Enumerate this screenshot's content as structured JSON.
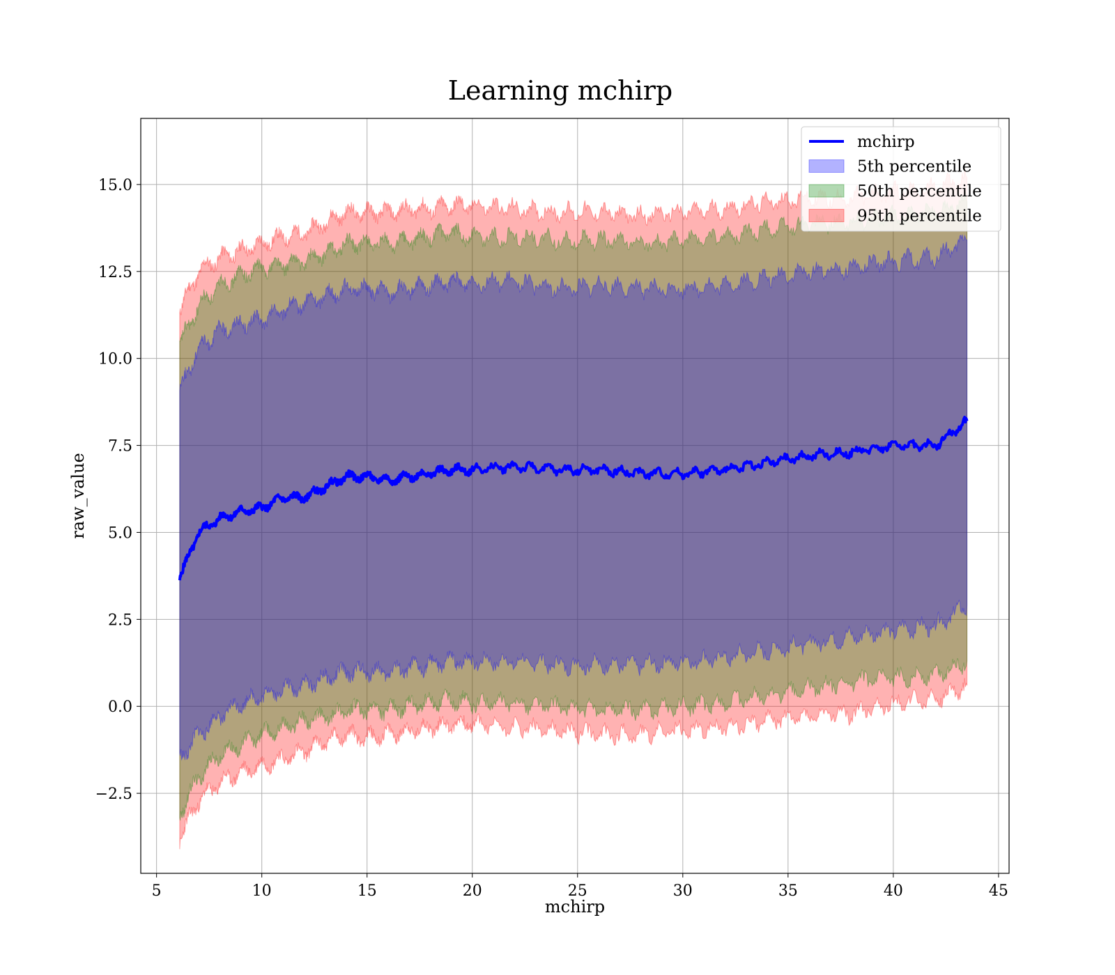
{
  "chart_data": {
    "type": "area",
    "title": "Learning mchirp",
    "xlabel": "mchirp",
    "ylabel": "raw_value",
    "xlim": [
      4.25,
      45.5
    ],
    "ylim": [
      -4.8,
      16.9
    ],
    "xticks": [
      5,
      10,
      15,
      20,
      25,
      30,
      35,
      40,
      45
    ],
    "xtick_labels": [
      "5",
      "10",
      "15",
      "20",
      "25",
      "30",
      "35",
      "40",
      "45"
    ],
    "yticks": [
      -2.5,
      0.0,
      2.5,
      5.0,
      7.5,
      10.0,
      12.5,
      15.0
    ],
    "ytick_labels": [
      "−2.5",
      "0.0",
      "2.5",
      "5.0",
      "7.5",
      "10.0",
      "12.5",
      "15.0"
    ],
    "grid": true,
    "legend_position": "top-right",
    "x": [
      6.1,
      7,
      8,
      9,
      10,
      11,
      12,
      13,
      14,
      15,
      16,
      17,
      18,
      19,
      20,
      22,
      24,
      26,
      28,
      30,
      32,
      34,
      36,
      38,
      40,
      42,
      43.5
    ],
    "series": [
      {
        "name": "mchirp",
        "kind": "line",
        "color": "#0000ff",
        "values": [
          3.7,
          5.0,
          5.4,
          5.6,
          5.7,
          6.0,
          6.0,
          6.3,
          6.6,
          6.6,
          6.5,
          6.6,
          6.7,
          6.8,
          6.8,
          6.9,
          6.8,
          6.8,
          6.7,
          6.7,
          6.8,
          7.0,
          7.2,
          7.3,
          7.5,
          7.5,
          8.2
        ]
      },
      {
        "name": "5th percentile",
        "kind": "band",
        "color": "#0000ff",
        "lower": [
          -1.5,
          -0.8,
          -0.3,
          0.1,
          0.3,
          0.5,
          0.6,
          0.8,
          1.0,
          1.0,
          1.0,
          1.1,
          1.2,
          1.3,
          1.3,
          1.3,
          1.2,
          1.2,
          1.2,
          1.3,
          1.4,
          1.6,
          1.8,
          2.0,
          2.2,
          2.3,
          2.9
        ],
        "upper": [
          9.1,
          10.3,
          10.8,
          11.0,
          11.1,
          11.4,
          11.6,
          11.8,
          12.0,
          12.0,
          11.9,
          12.0,
          12.1,
          12.2,
          12.2,
          12.2,
          12.0,
          12.1,
          12.0,
          12.0,
          12.1,
          12.3,
          12.5,
          12.6,
          12.8,
          12.9,
          13.4
        ]
      },
      {
        "name": "50th percentile",
        "kind": "band",
        "color": "#008000",
        "lower": [
          -3.1,
          -2.0,
          -1.4,
          -1.1,
          -0.8,
          -0.6,
          -0.4,
          -0.3,
          -0.1,
          -0.1,
          -0.1,
          0.0,
          0.1,
          0.2,
          0.1,
          0.1,
          0.0,
          -0.1,
          -0.1,
          0.0,
          0.1,
          0.3,
          0.5,
          0.7,
          0.8,
          0.9,
          1.3
        ],
        "upper": [
          10.4,
          11.5,
          12.1,
          12.4,
          12.6,
          12.7,
          12.8,
          13.0,
          13.3,
          13.3,
          13.3,
          13.4,
          13.5,
          13.6,
          13.5,
          13.5,
          13.4,
          13.4,
          13.3,
          13.4,
          13.5,
          13.7,
          13.9,
          13.9,
          14.1,
          14.2,
          14.5
        ]
      },
      {
        "name": "95th percentile",
        "kind": "band",
        "color": "#ff0000",
        "lower": [
          -3.8,
          -2.7,
          -2.2,
          -1.9,
          -1.7,
          -1.5,
          -1.3,
          -1.0,
          -0.8,
          -0.9,
          -0.8,
          -0.7,
          -0.6,
          -0.5,
          -0.5,
          -0.6,
          -0.7,
          -0.8,
          -0.8,
          -0.7,
          -0.6,
          -0.4,
          -0.3,
          -0.2,
          0.1,
          0.2,
          0.6
        ],
        "upper": [
          11.4,
          12.5,
          12.9,
          13.1,
          13.3,
          13.5,
          13.6,
          13.9,
          14.2,
          14.2,
          14.2,
          14.3,
          14.3,
          14.4,
          14.4,
          14.3,
          14.2,
          14.2,
          14.1,
          14.2,
          14.3,
          14.5,
          14.6,
          14.6,
          14.8,
          14.9,
          15.2
        ]
      }
    ]
  }
}
